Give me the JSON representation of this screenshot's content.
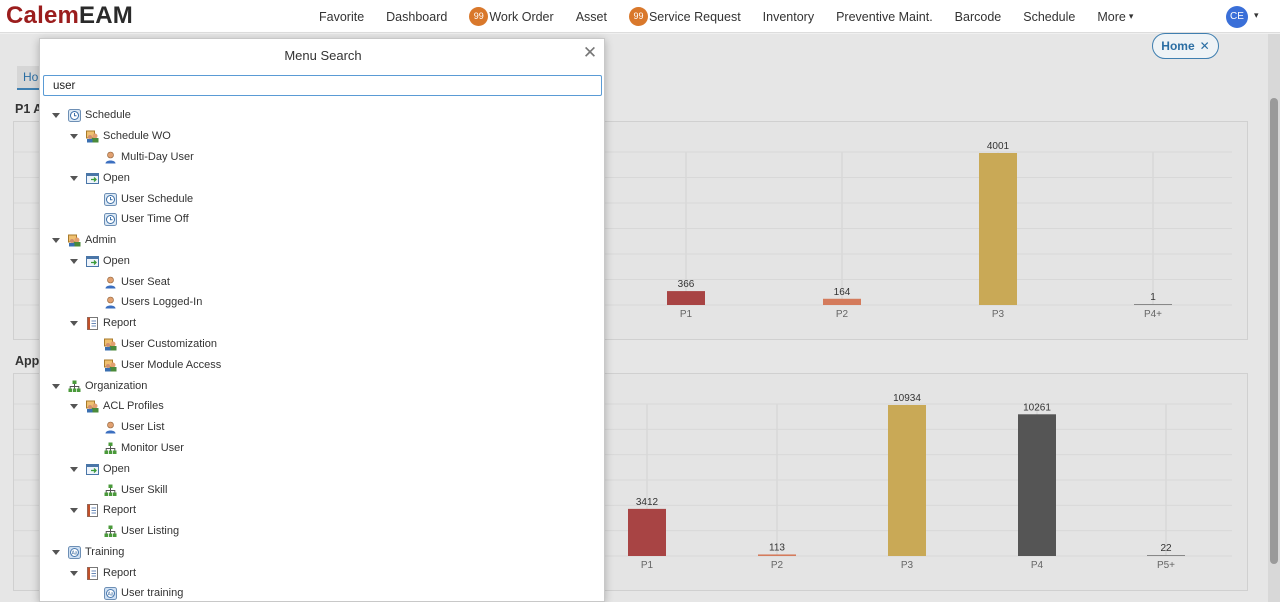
{
  "logo": {
    "part1": "Calem",
    "part2": "EAM"
  },
  "nav": {
    "items": [
      {
        "label": "Favorite"
      },
      {
        "label": "Dashboard"
      },
      {
        "label": "Work Order",
        "badge": "99"
      },
      {
        "label": "Asset"
      },
      {
        "label": "Service Request",
        "badge": "99"
      },
      {
        "label": "Inventory"
      },
      {
        "label": "Preventive Maint."
      },
      {
        "label": "Barcode"
      },
      {
        "label": "Schedule"
      },
      {
        "label": "More"
      }
    ],
    "avatar": "CE"
  },
  "background": {
    "home_pill": "Home",
    "home_tab": "Ho",
    "section1": "P1 A",
    "section2": "Appr"
  },
  "chart_data": [
    {
      "type": "bar",
      "categories": [
        "P1",
        "P2",
        "P3",
        "P4+"
      ],
      "values": [
        366,
        164,
        4001,
        1
      ],
      "colors": [
        "#a84444",
        "#d47b5c",
        "#c9a956",
        "#888888"
      ]
    },
    {
      "type": "bar",
      "categories": [
        "P1",
        "P2",
        "P3",
        "P4",
        "P5+"
      ],
      "values": [
        3412,
        113,
        10934,
        10261,
        22
      ],
      "colors": [
        "#a84444",
        "#d47b5c",
        "#c9a956",
        "#555555",
        "#888888"
      ]
    }
  ],
  "modal": {
    "title": "Menu Search",
    "search_value": "user",
    "tree": [
      {
        "label": "Schedule",
        "level": 0,
        "icon": "schedule-icon",
        "expanded": true
      },
      {
        "label": "Schedule WO",
        "level": 1,
        "icon": "group-icon",
        "expanded": true
      },
      {
        "label": "Multi-Day User",
        "level": 2,
        "icon": "user-icon"
      },
      {
        "label": "Open",
        "level": 1,
        "icon": "open-window-icon",
        "expanded": true
      },
      {
        "label": "User Schedule",
        "level": 2,
        "icon": "schedule-icon"
      },
      {
        "label": "User Time Off",
        "level": 2,
        "icon": "schedule-icon"
      },
      {
        "label": "Admin",
        "level": 0,
        "icon": "group-icon",
        "expanded": true
      },
      {
        "label": "Open",
        "level": 1,
        "icon": "open-window-icon",
        "expanded": true
      },
      {
        "label": "User Seat",
        "level": 2,
        "icon": "user-icon"
      },
      {
        "label": "Users Logged-In",
        "level": 2,
        "icon": "user-icon"
      },
      {
        "label": "Report",
        "level": 1,
        "icon": "report-icon",
        "expanded": true
      },
      {
        "label": "User Customization",
        "level": 2,
        "icon": "group-icon"
      },
      {
        "label": "User Module Access",
        "level": 2,
        "icon": "group-icon"
      },
      {
        "label": "Organization",
        "level": 0,
        "icon": "org-chart-icon",
        "expanded": true
      },
      {
        "label": "ACL Profiles",
        "level": 1,
        "icon": "group-icon",
        "expanded": true
      },
      {
        "label": "User List",
        "level": 2,
        "icon": "user-icon"
      },
      {
        "label": "Monitor User",
        "level": 2,
        "icon": "org-chart-icon"
      },
      {
        "label": "Open",
        "level": 1,
        "icon": "open-window-icon",
        "expanded": true
      },
      {
        "label": "User Skill",
        "level": 2,
        "icon": "org-chart-icon"
      },
      {
        "label": "Report",
        "level": 1,
        "icon": "report-icon",
        "expanded": true
      },
      {
        "label": "User Listing",
        "level": 2,
        "icon": "org-chart-icon"
      },
      {
        "label": "Training",
        "level": 0,
        "icon": "training-icon",
        "expanded": true
      },
      {
        "label": "Report",
        "level": 1,
        "icon": "report-icon",
        "expanded": true
      },
      {
        "label": "User training",
        "level": 2,
        "icon": "training-icon"
      }
    ]
  }
}
